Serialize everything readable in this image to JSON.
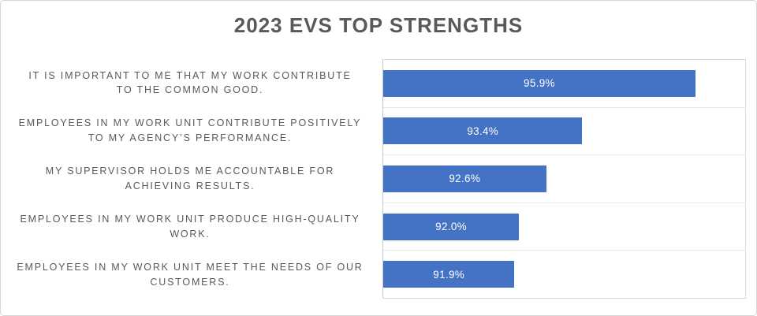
{
  "title": "2023 EVS TOP STRENGTHS",
  "chart_data": {
    "type": "bar",
    "orientation": "horizontal",
    "title": "2023 EVS TOP STRENGTHS",
    "categories": [
      "IT IS IMPORTANT TO ME THAT MY WORK CONTRIBUTE TO THE COMMON GOOD.",
      "EMPLOYEES IN MY WORK UNIT CONTRIBUTE POSITIVELY TO MY AGENCY’S PERFORMANCE.",
      "MY SUPERVISOR HOLDS ME ACCOUNTABLE FOR ACHIEVING RESULTS.",
      "EMPLOYEES IN MY WORK UNIT PRODUCE HIGH-QUALITY WORK.",
      "EMPLOYEES IN MY WORK UNIT MEET THE NEEDS OF OUR CUSTOMERS."
    ],
    "category_lines": [
      [
        "IT IS IMPORTANT TO ME THAT MY WORK CONTRIBUTE",
        "TO THE COMMON GOOD."
      ],
      [
        "EMPLOYEES IN MY WORK UNIT CONTRIBUTE POSITIVELY",
        "TO MY AGENCY’S PERFORMANCE."
      ],
      [
        "MY SUPERVISOR HOLDS ME ACCOUNTABLE FOR",
        "ACHIEVING RESULTS."
      ],
      [
        "EMPLOYEES IN MY WORK UNIT PRODUCE HIGH-QUALITY",
        "WORK."
      ],
      [
        "EMPLOYEES IN MY WORK UNIT MEET THE NEEDS OF OUR",
        "CUSTOMERS."
      ]
    ],
    "values": [
      95.9,
      93.4,
      92.6,
      92.0,
      91.9
    ],
    "value_labels": [
      "95.9%",
      "93.4%",
      "92.6%",
      "92.0%",
      "91.9%"
    ],
    "xlim": [
      89,
      97
    ],
    "grid": true,
    "legend": false,
    "data_label_position": "center",
    "colors": {
      "bar": "#4472c4",
      "title_text": "#595959",
      "category_text": "#595959",
      "value_text": "#ffffff",
      "gridline": "#e7e7e7",
      "plot_border": "#d9d9d9"
    }
  }
}
